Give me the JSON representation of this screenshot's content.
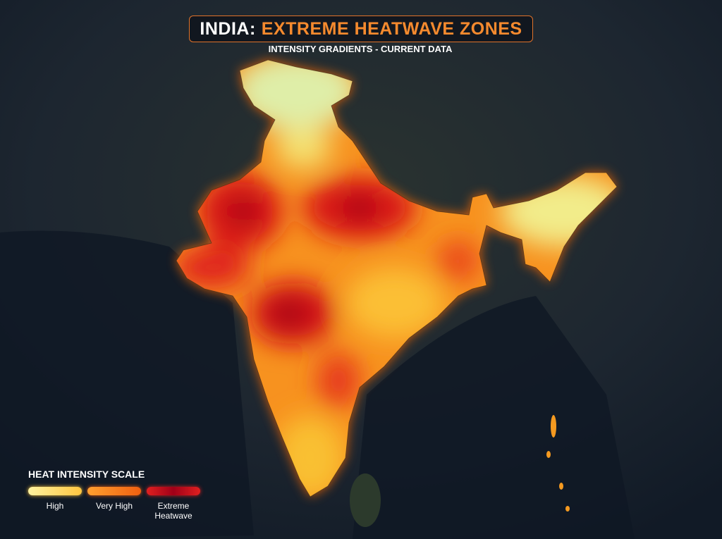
{
  "header": {
    "title_prefix": "INDIA:",
    "title": "EXTREME HEATWAVE ZONES",
    "subtitle": "INTENSITY GRADIENTS - CURRENT DATA"
  },
  "legend": {
    "title": "HEAT INTENSITY SCALE",
    "items": [
      {
        "label": "High"
      },
      {
        "label": "Very High"
      },
      {
        "label": "Extreme Heatwave"
      }
    ]
  }
}
